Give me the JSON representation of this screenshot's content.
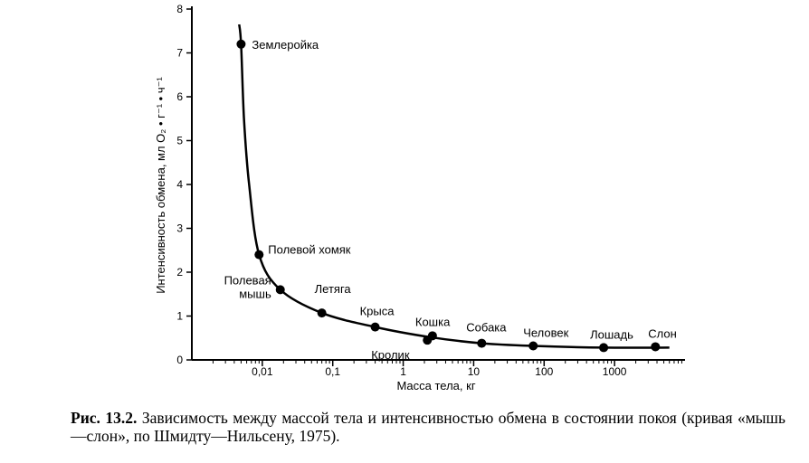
{
  "chart_data": {
    "type": "scatter",
    "xscale": "log",
    "xlabel": "Масса тела, кг",
    "ylabel": "Интенсивность обмена, мл O₂ • г⁻¹ • ч⁻¹",
    "xlim": [
      0.001,
      10000
    ],
    "ylim": [
      0,
      8
    ],
    "x_tick_values": [
      0.01,
      0.1,
      1,
      10,
      100,
      1000
    ],
    "x_tick_labels": [
      "0,01",
      "0,1",
      "1",
      "10",
      "100",
      "1000"
    ],
    "y_tick_values": [
      0,
      1,
      2,
      3,
      4,
      5,
      6,
      7,
      8
    ],
    "y_tick_labels": [
      "0",
      "1",
      "2",
      "3",
      "4",
      "5",
      "6",
      "7",
      "8"
    ],
    "grid": false,
    "series": [
      {
        "points": [
          {
            "label": "Землеройка",
            "x": 0.005,
            "y": 7.2
          },
          {
            "label": "Полевой хомяк",
            "x": 0.009,
            "y": 2.4
          },
          {
            "label": "Полевая\nмышь",
            "x": 0.018,
            "y": 1.6
          },
          {
            "label": "Летяга",
            "x": 0.07,
            "y": 1.07
          },
          {
            "label": "Крыса",
            "x": 0.4,
            "y": 0.75
          },
          {
            "label": "Кролик",
            "x": 2.2,
            "y": 0.45
          },
          {
            "label": "Кошка",
            "x": 2.6,
            "y": 0.55
          },
          {
            "label": "Собака",
            "x": 13,
            "y": 0.38
          },
          {
            "label": "Человек",
            "x": 70,
            "y": 0.32
          },
          {
            "label": "Лошадь",
            "x": 700,
            "y": 0.28
          },
          {
            "label": "Слон",
            "x": 3800,
            "y": 0.3
          }
        ],
        "curve": [
          {
            "x": 0.0047,
            "y": 7.65
          },
          {
            "x": 0.005,
            "y": 7.2
          },
          {
            "x": 0.0055,
            "y": 5.5
          },
          {
            "x": 0.0065,
            "y": 4.0
          },
          {
            "x": 0.009,
            "y": 2.4
          },
          {
            "x": 0.018,
            "y": 1.6
          },
          {
            "x": 0.07,
            "y": 1.07
          },
          {
            "x": 0.4,
            "y": 0.75
          },
          {
            "x": 2.4,
            "y": 0.52
          },
          {
            "x": 13,
            "y": 0.38
          },
          {
            "x": 70,
            "y": 0.32
          },
          {
            "x": 700,
            "y": 0.28
          },
          {
            "x": 6000,
            "y": 0.28
          }
        ]
      }
    ]
  },
  "caption": {
    "figure_number": "Рис. 13.2.",
    "text": " Зависимость между массой тела и интенсивностью обмена в состоянии покоя (кривая «мышь—слон», по Шмидту—Нильсену, 1975)."
  },
  "colors": {
    "ink": "#000000",
    "background": "#ffffff"
  }
}
